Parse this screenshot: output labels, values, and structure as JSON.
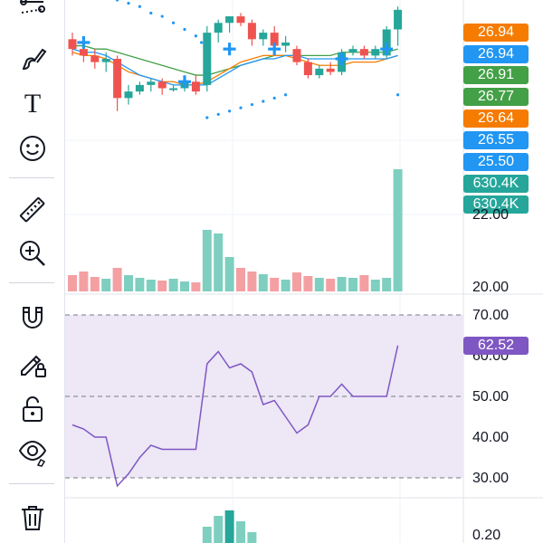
{
  "toolbar": {
    "tools": [
      {
        "name": "trend-line-tools-icon",
        "label": "Trend line tools"
      },
      {
        "name": "brush-icon",
        "label": "Brush"
      },
      {
        "name": "text-icon",
        "label": "Text",
        "glyph": "T"
      },
      {
        "name": "emoji-icon",
        "label": "Icons"
      },
      {
        "name": "ruler-icon",
        "label": "Measure"
      },
      {
        "name": "zoom-in-icon",
        "label": "Zoom in"
      },
      {
        "name": "magnet-icon",
        "label": "Magnet mode"
      },
      {
        "name": "lock-drawings-icon",
        "label": "Lock drawing tools"
      },
      {
        "name": "unlock-icon",
        "label": "Lock all drawings"
      },
      {
        "name": "eye-icon",
        "label": "Hide drawings"
      },
      {
        "name": "trash-icon",
        "label": "Remove drawings"
      }
    ]
  },
  "colors": {
    "up": "#26a69a",
    "down": "#ef5350",
    "upVolume": "#7ecfc0",
    "downVolume": "#f4a0a3",
    "rsi": "#7e57c2",
    "rsiBand": "#ede7f6",
    "blue": "#2196f3",
    "orange": "#f57c00",
    "green": "#43a047",
    "volTag": "#26a69a"
  },
  "price_tags": [
    {
      "text": "26.94",
      "color": "#f57c00"
    },
    {
      "text": "26.94",
      "color": "#2196f3"
    },
    {
      "text": "26.91",
      "color": "#43a047"
    },
    {
      "text": "26.77",
      "color": "#43a047"
    },
    {
      "text": "26.64",
      "color": "#f57c00"
    },
    {
      "text": "26.55",
      "color": "#2196f3"
    },
    {
      "text": "25.50",
      "color": "#2196f3"
    },
    {
      "text": "630.4K",
      "color": "#26a69a"
    },
    {
      "text": "630.4K",
      "color": "#26a69a"
    }
  ],
  "price_axis": {
    "labels": [
      "22.00",
      "20.00"
    ]
  },
  "rsi_axis": {
    "labels": [
      "70.00",
      "60.00",
      "50.00",
      "40.00",
      "30.00"
    ],
    "current": "62.52"
  },
  "bottom_axis": {
    "labels": [
      "0.20"
    ]
  },
  "chart_data": {
    "type": "candlestick",
    "candles": [
      {
        "o": 27.2,
        "h": 27.4,
        "l": 26.7,
        "c": 26.9
      },
      {
        "o": 26.9,
        "h": 27.0,
        "l": 26.5,
        "c": 26.7
      },
      {
        "o": 26.7,
        "h": 26.9,
        "l": 26.3,
        "c": 26.5
      },
      {
        "o": 26.5,
        "h": 26.8,
        "l": 26.2,
        "c": 26.6
      },
      {
        "o": 26.6,
        "h": 26.7,
        "l": 25.0,
        "c": 25.4
      },
      {
        "o": 25.4,
        "h": 25.8,
        "l": 25.2,
        "c": 25.6
      },
      {
        "o": 25.6,
        "h": 25.9,
        "l": 25.5,
        "c": 25.8
      },
      {
        "o": 25.8,
        "h": 26.0,
        "l": 25.6,
        "c": 25.9
      },
      {
        "o": 25.9,
        "h": 26.0,
        "l": 25.5,
        "c": 25.7
      },
      {
        "o": 25.7,
        "h": 25.8,
        "l": 25.6,
        "c": 25.7
      },
      {
        "o": 25.7,
        "h": 26.0,
        "l": 25.6,
        "c": 25.9
      },
      {
        "o": 25.9,
        "h": 26.1,
        "l": 25.5,
        "c": 25.6
      },
      {
        "o": 25.8,
        "h": 27.6,
        "l": 25.6,
        "c": 27.4
      },
      {
        "o": 27.4,
        "h": 27.8,
        "l": 27.1,
        "c": 27.7
      },
      {
        "o": 27.7,
        "h": 27.9,
        "l": 27.4,
        "c": 27.9
      },
      {
        "o": 27.9,
        "h": 28.0,
        "l": 27.6,
        "c": 27.7
      },
      {
        "o": 27.7,
        "h": 27.8,
        "l": 27.0,
        "c": 27.2
      },
      {
        "o": 27.2,
        "h": 27.5,
        "l": 27.0,
        "c": 27.4
      },
      {
        "o": 27.4,
        "h": 27.6,
        "l": 26.9,
        "c": 27.0
      },
      {
        "o": 27.0,
        "h": 27.3,
        "l": 26.8,
        "c": 27.1
      },
      {
        "o": 26.9,
        "h": 27.0,
        "l": 26.4,
        "c": 26.5
      },
      {
        "o": 26.5,
        "h": 26.6,
        "l": 26.0,
        "c": 26.1
      },
      {
        "o": 26.1,
        "h": 26.4,
        "l": 26.0,
        "c": 26.3
      },
      {
        "o": 26.3,
        "h": 26.5,
        "l": 26.1,
        "c": 26.2
      },
      {
        "o": 26.2,
        "h": 26.9,
        "l": 26.1,
        "c": 26.8
      },
      {
        "o": 26.8,
        "h": 27.0,
        "l": 26.7,
        "c": 26.9
      },
      {
        "o": 26.9,
        "h": 27.0,
        "l": 26.6,
        "c": 26.7
      },
      {
        "o": 26.7,
        "h": 27.0,
        "l": 26.6,
        "c": 26.9
      },
      {
        "o": 26.7,
        "h": 27.6,
        "l": 26.6,
        "c": 27.5
      },
      {
        "o": 27.5,
        "h": 28.2,
        "l": 27.0,
        "c": 28.1
      }
    ],
    "volume": [
      180,
      220,
      160,
      140,
      260,
      180,
      150,
      130,
      120,
      140,
      110,
      100,
      680,
      640,
      380,
      260,
      220,
      190,
      150,
      130,
      210,
      170,
      150,
      140,
      160,
      150,
      180,
      130,
      150,
      1350
    ],
    "sma_blue": [
      26.9,
      26.8,
      26.8,
      26.7,
      26.5,
      26.3,
      26.1,
      26.0,
      25.9,
      25.8,
      25.8,
      25.8,
      25.8,
      26.0,
      26.2,
      26.4,
      26.5,
      26.6,
      26.6,
      26.7,
      26.7,
      26.6,
      26.6,
      26.6,
      26.6,
      26.6,
      26.6,
      26.6,
      26.6,
      26.7
    ],
    "sma_orange": [
      26.8,
      26.7,
      26.7,
      26.6,
      26.4,
      26.2,
      26.1,
      26.0,
      25.9,
      25.9,
      25.8,
      25.8,
      25.9,
      26.1,
      26.3,
      26.5,
      26.6,
      26.7,
      26.7,
      26.7,
      26.6,
      26.5,
      26.4,
      26.4,
      26.4,
      26.5,
      26.5,
      26.5,
      26.6,
      26.7
    ],
    "sma_green": [
      27.0,
      27.0,
      26.9,
      26.9,
      26.8,
      26.7,
      26.6,
      26.5,
      26.4,
      26.3,
      26.2,
      26.1,
      26.1,
      26.2,
      26.3,
      26.4,
      26.5,
      26.6,
      26.7,
      26.7,
      26.7,
      26.7,
      26.7,
      26.7,
      26.8,
      26.8,
      26.8,
      26.8,
      26.8,
      26.9
    ],
    "cross_markers": [
      {
        "i": 1,
        "v": 27.1
      },
      {
        "i": 10,
        "v": 25.9
      },
      {
        "i": 14,
        "v": 26.9
      },
      {
        "i": 18,
        "v": 26.9
      },
      {
        "i": 24,
        "v": 26.6
      },
      {
        "i": 28,
        "v": 26.9
      }
    ],
    "psar_dots": [
      {
        "i": 4,
        "v": 28.4
      },
      {
        "i": 5,
        "v": 28.3
      },
      {
        "i": 6,
        "v": 28.2
      },
      {
        "i": 7,
        "v": 28.0
      },
      {
        "i": 8,
        "v": 27.9
      },
      {
        "i": 9,
        "v": 27.7
      },
      {
        "i": 10,
        "v": 27.5
      },
      {
        "i": 11,
        "v": 27.3
      },
      {
        "i": 11.5,
        "v": 27.1
      },
      {
        "i": 12,
        "v": 24.8
      },
      {
        "i": 13,
        "v": 24.9
      },
      {
        "i": 14,
        "v": 25.0
      },
      {
        "i": 15,
        "v": 25.1
      },
      {
        "i": 16,
        "v": 25.2
      },
      {
        "i": 17,
        "v": 25.3
      },
      {
        "i": 18,
        "v": 25.4
      },
      {
        "i": 19,
        "v": 25.5
      },
      {
        "i": 29,
        "v": 25.5
      }
    ],
    "rsi": [
      43,
      42,
      40,
      40,
      28,
      31,
      35,
      38,
      37,
      37,
      37,
      37,
      58,
      61,
      57,
      58,
      56,
      48,
      49,
      45,
      41,
      43,
      50,
      50,
      53,
      50,
      50,
      50,
      50,
      62.5
    ],
    "rsi_levels": [
      70,
      50,
      30
    ],
    "rsi_axis_ticks": [
      70,
      60,
      50,
      40,
      30
    ],
    "macd_hist": [
      0,
      0,
      0,
      0,
      0,
      0,
      0,
      0,
      0,
      0,
      0,
      0,
      0.3,
      0.5,
      0.6,
      0.4,
      0.2,
      0,
      0,
      0,
      0,
      0,
      0,
      0,
      0,
      0,
      0,
      0,
      0,
      0
    ]
  }
}
